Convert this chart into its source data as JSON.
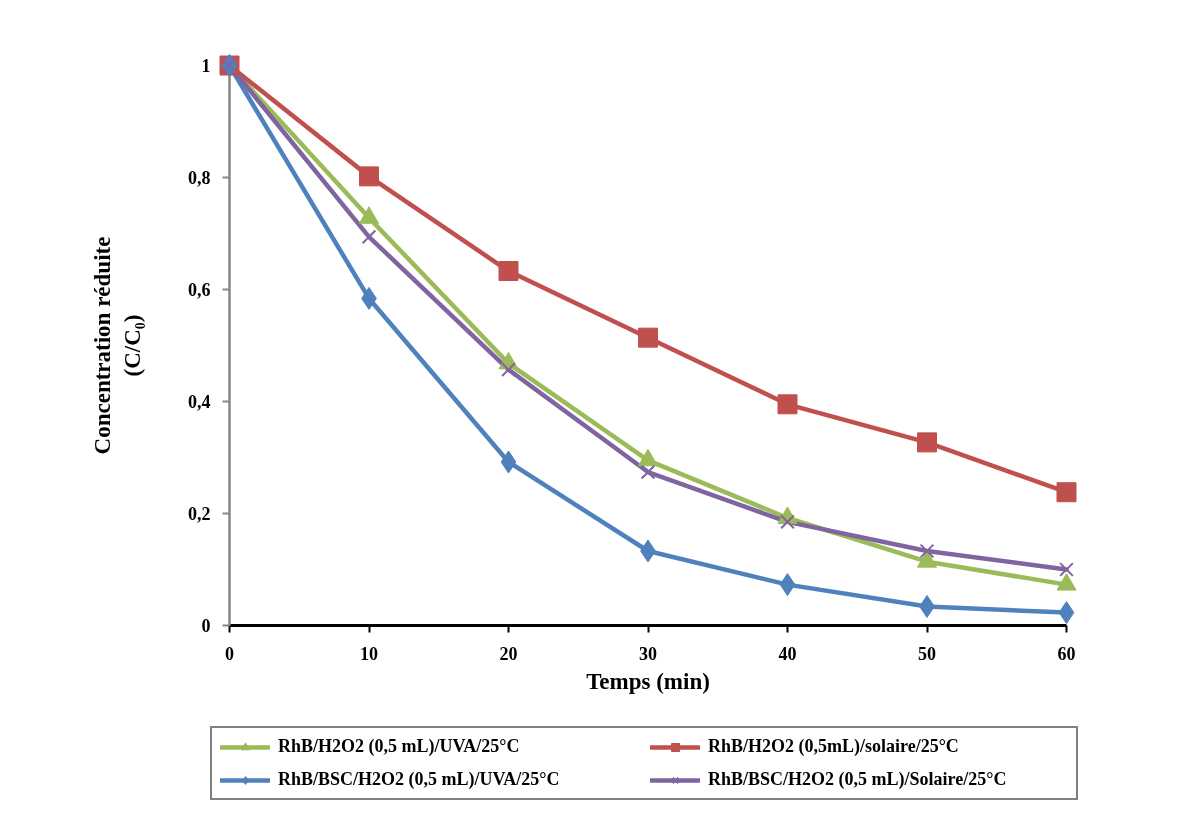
{
  "chart_data": {
    "type": "line",
    "xlabel": "Temps (min)",
    "ylabel": "Concentration réduite (C/C₀)",
    "x": [
      0,
      10,
      20,
      30,
      40,
      50,
      60
    ],
    "xlim": [
      0,
      60
    ],
    "xticks": [
      0,
      10,
      20,
      30,
      40,
      50,
      60
    ],
    "ylim": [
      0,
      1
    ],
    "yticks": [
      0,
      {
        "value": 0.2,
        "label": "0,2"
      },
      {
        "value": 0.4,
        "label": "0,4"
      },
      {
        "value": 0.6,
        "label": "0,6"
      },
      {
        "value": 0.8,
        "label": "0,8"
      },
      1
    ],
    "grid": false,
    "legend": "bottom",
    "line_style": "solid",
    "series": [
      {
        "name": "RhB/H2O2 (0,5 mL)/UVA/25°C",
        "color": "#9bbb59",
        "marker": "triangle",
        "values": [
          1,
          0.728,
          0.468,
          0.295,
          0.192,
          0.114,
          0.073
        ]
      },
      {
        "name": "RhB/H2O2 (0,5mL)/solaire/25°C",
        "color": "#c0504d",
        "marker": "square",
        "values": [
          1,
          0.802,
          0.633,
          0.514,
          0.395,
          0.327,
          0.238
        ]
      },
      {
        "name": "RhB/BSC/H2O2 (0,5 mL)/UVA/25°C",
        "color": "#4f81bd",
        "marker": "diamond",
        "values": [
          1,
          0.584,
          0.292,
          0.133,
          0.073,
          0.034,
          0.023
        ]
      },
      {
        "name": "RhB/BSC/H2O2 (0,5 mL)/Solaire/25°C",
        "color": "#8064a2",
        "marker": "cross",
        "values": [
          1,
          0.694,
          0.457,
          0.274,
          0.185,
          0.133,
          0.1
        ]
      }
    ]
  }
}
